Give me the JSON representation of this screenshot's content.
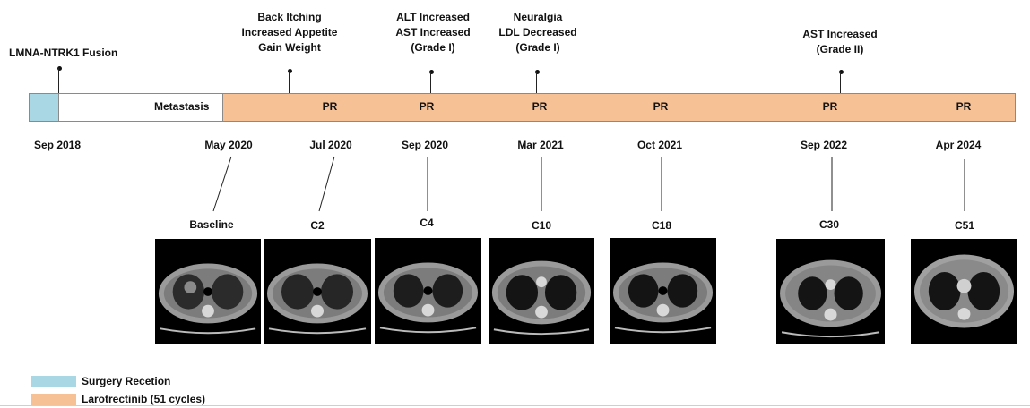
{
  "fusion_label": "LMNA-NTRK1 Fusion",
  "metastasis_label": "Metastasis",
  "events": [
    {
      "lines": [
        "Back Itching",
        "Increased Appetite",
        "Gain Weight"
      ]
    },
    {
      "lines": [
        "ALT Increased",
        "AST Increased",
        "(Grade I)"
      ]
    },
    {
      "lines": [
        "Neuralgia",
        "LDL Decreased",
        "(Grade I)"
      ]
    },
    {
      "lines": [
        "AST Increased",
        "(Grade II)"
      ]
    }
  ],
  "pr_labels": [
    "PR",
    "PR",
    "PR",
    "PR",
    "PR",
    "PR"
  ],
  "dates": [
    "Sep 2018",
    "May 2020",
    "Jul 2020",
    "Sep 2020",
    "Mar 2021",
    "Oct 2021",
    "Sep 2022",
    "Apr 2024"
  ],
  "cycles": [
    "Baseline",
    "C2",
    "C4",
    "C10",
    "C18",
    "C30",
    "C51"
  ],
  "legend": [
    {
      "label": "Surgery Recetion",
      "color": "#a9d8e4"
    },
    {
      "label": "Larotrectinib (51 cycles)",
      "color": "#f7c196"
    }
  ],
  "colors": {
    "surgery": "#a9d8e4",
    "treatment": "#f7c196",
    "timeline_border": "#8a8a8a"
  }
}
